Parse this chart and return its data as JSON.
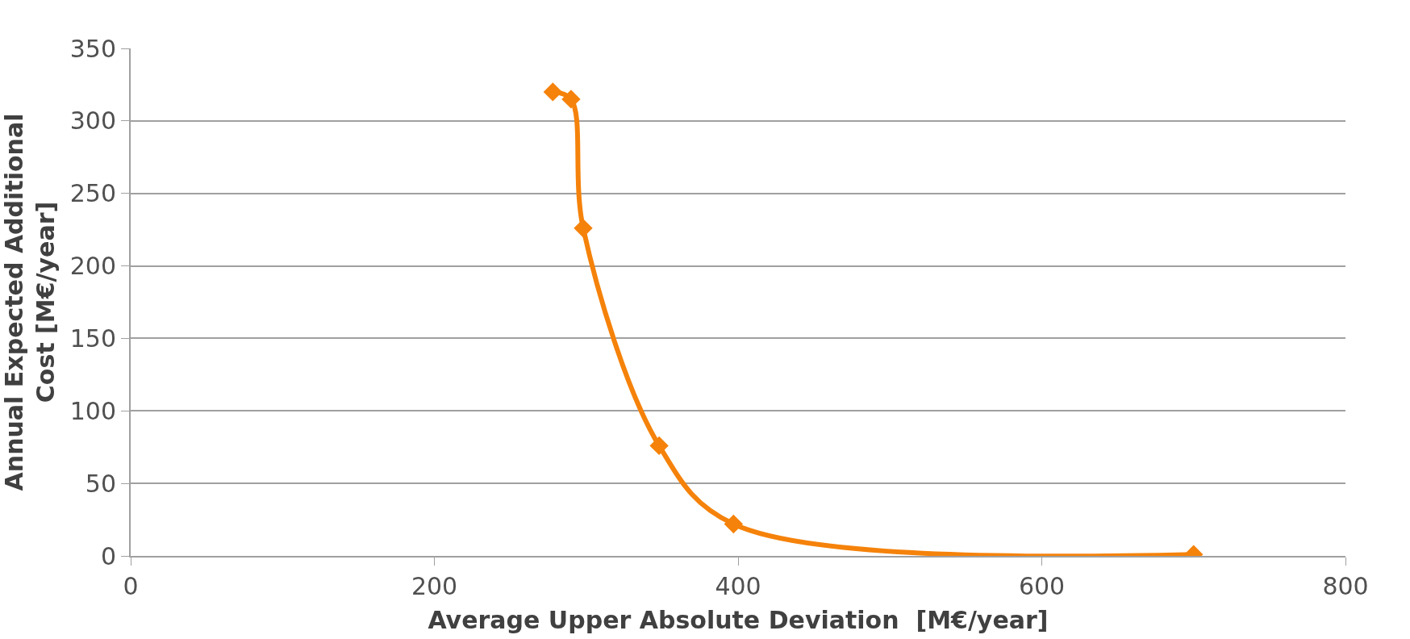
{
  "chart_data": {
    "type": "line",
    "xlabel": "Average Upper Absolute Deviation  [M€/year]",
    "ylabel": "Annual Expected Additional Cost [M€/year]",
    "series": [
      {
        "color": "#f5820a",
        "x": [
          278,
          290,
          298,
          348,
          397,
          700
        ],
        "values": [
          320,
          315,
          226,
          76,
          22,
          1
        ]
      }
    ],
    "xlim": [
      0,
      800
    ],
    "xticks": [
      0,
      200,
      400,
      600,
      800
    ],
    "ylim": [
      0,
      350
    ],
    "yticks": [
      0,
      50,
      100,
      150,
      200,
      250,
      300,
      350
    ],
    "grid": "y",
    "marker": "diamond",
    "line_style": "solid",
    "legend": false
  }
}
